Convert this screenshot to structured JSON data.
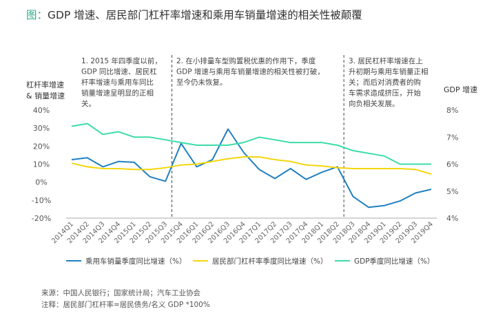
{
  "title_prefix": "图：",
  "title_text": "GDP 增速、居民部门杠杆率增速和乘用车销量增速的相关性被颠覆",
  "source": "来源：中国人民银行；国家统计局；汽车工业协会",
  "note": "注释：居民部门杠杆率=居民债务/名义 GDP *100%",
  "chart_data": {
    "type": "line",
    "left_axis_label_lines": [
      "杠杆率增速",
      "& 销量增速"
    ],
    "right_axis_label": "GDP 增速",
    "left_ticks": [
      "40%",
      "30%",
      "20%",
      "10%",
      "0%",
      "-10%",
      "-20%"
    ],
    "right_ticks": [
      "8%",
      "7%",
      "6%",
      "5%",
      "4%"
    ],
    "ylim_left": [
      -20,
      40
    ],
    "ylim_right": [
      4,
      8
    ],
    "categories": [
      "2014Q1",
      "2014Q2",
      "2014Q3",
      "2014Q4",
      "2015Q1",
      "2015Q2",
      "2015Q3",
      "2015Q4",
      "2016Q1",
      "2016Q2",
      "2016Q3",
      "2016Q4",
      "2017Q1",
      "2017Q2",
      "2017Q3",
      "2017Q4",
      "2018Q1",
      "2018Q2",
      "2018Q3",
      "2018Q4",
      "2019Q1",
      "2019Q2",
      "2019Q3",
      "2019Q4"
    ],
    "series": [
      {
        "name": "乘用车销量季度同比增速（%）",
        "axis": "left",
        "color": "#1f7fbf",
        "values": [
          12.5,
          13.5,
          8.5,
          11.5,
          11,
          3,
          0.5,
          21.5,
          8.5,
          12.5,
          29.5,
          16.5,
          7,
          2,
          7.5,
          1.5,
          5.5,
          8.5,
          -8,
          -14,
          -13,
          -10.5,
          -6,
          -4
        ]
      },
      {
        "name": "居民部门杠杆率季度同比增速（%）",
        "axis": "left",
        "color": "#f5d60a",
        "values": [
          10.5,
          8.5,
          7.5,
          7.5,
          7,
          7,
          8,
          9.5,
          10,
          11.5,
          13,
          14,
          14,
          12.5,
          11.5,
          9.5,
          9,
          8,
          7.5,
          7.5,
          7.5,
          7.5,
          7,
          4.5
        ]
      },
      {
        "name": "GDP季度同比增速（%）",
        "axis": "right",
        "color": "#3bdca8",
        "values": [
          7.4,
          7.5,
          7.1,
          7.2,
          7.0,
          7.0,
          6.9,
          6.8,
          6.7,
          6.7,
          6.7,
          6.8,
          7.0,
          6.9,
          6.8,
          6.8,
          6.8,
          6.7,
          6.5,
          6.4,
          6.3,
          6.0,
          6.0,
          6.0
        ]
      }
    ],
    "annotations": [
      {
        "after_category": "2015Q3",
        "lines": [
          "1. 2015 年四季度以前，",
          "GDP  同比增速、居民杠",
          "杆率增速与乘用车同比",
          "销量增速呈明显的正相",
          "关。"
        ]
      },
      {
        "after_category": "2018Q2",
        "lines": [
          "2. 在小排量车型购置税优惠的作用下，季度",
          "GDP  增速与乘用车销量增速的相关性被打破，",
          "至今仍未恢复。"
        ]
      },
      {
        "after_category": null,
        "lines": [
          "3. 居民杠杆率增速在上",
          "升初期与乘用车销量正相",
          "关；而后对消费者的购",
          "车需求造成挤压，开始",
          "向负相关发展。"
        ]
      }
    ],
    "grid": false,
    "legend_position": "bottom"
  }
}
